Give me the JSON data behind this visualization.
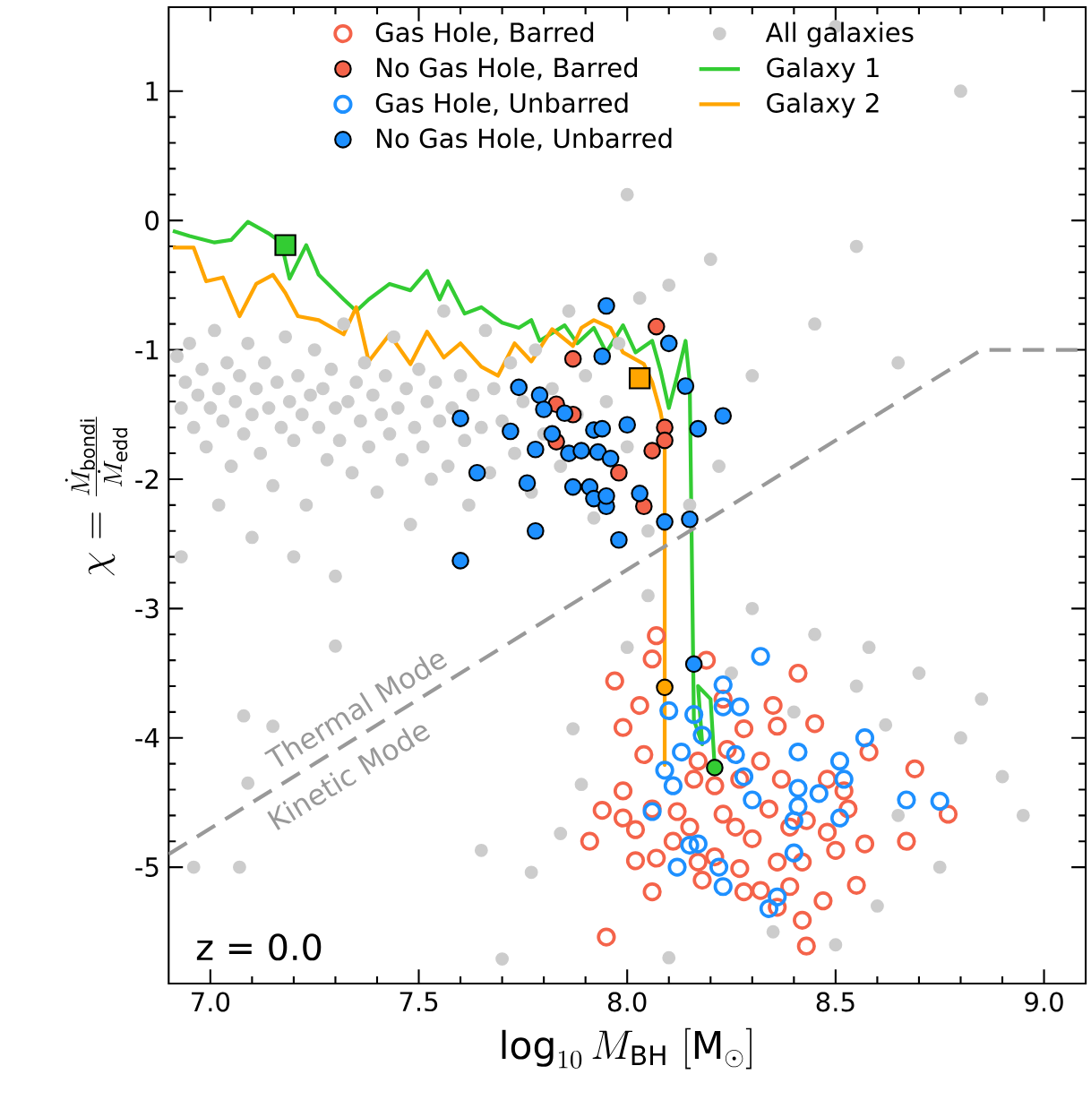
{
  "chart_data": {
    "type": "scatter",
    "xlabel": "\\log_{10} M_{\\rm BH}\\ [{\\rm M}_\\odot]",
    "ylabel": "\\chi = \\frac{\\dot{M}_{\\rm bondi}}{\\dot{M}_{\\rm edd}}",
    "xlim": [
      6.9,
      9.1
    ],
    "ylim": [
      -5.9,
      1.65
    ],
    "xticks": [
      {
        "value": 7.0,
        "label": "7.0"
      },
      {
        "value": 7.5,
        "label": "7.5"
      },
      {
        "value": 8.0,
        "label": "8.0"
      },
      {
        "value": 8.5,
        "label": "8.5"
      },
      {
        "value": 9.0,
        "label": "9.0"
      }
    ],
    "yticks": [
      -5,
      -4,
      -3,
      -2,
      -1,
      0,
      1
    ],
    "legend": "top",
    "grid": false,
    "marker": "circle",
    "annotations": [
      "Thermal Mode",
      "Kinetic Mode",
      "z = 0.0"
    ],
    "series": [
      {
        "name": "Gas Hole, Barred",
        "color": "#f4634a",
        "x": [
          8.07,
          8.06,
          7.97,
          8.03,
          7.99,
          8.04,
          7.99,
          7.94,
          7.91,
          8.02,
          8.07,
          8.02,
          8.06,
          8.12,
          8.11,
          8.17,
          8.19,
          8.23,
          8.28,
          8.35,
          8.36,
          8.41,
          8.45,
          8.32,
          8.37,
          8.27,
          8.21,
          8.23,
          8.26,
          8.3,
          8.34,
          8.39,
          8.43,
          8.48,
          8.52,
          8.58,
          8.57,
          8.55,
          8.47,
          8.42,
          8.43,
          8.36,
          8.32,
          8.27,
          8.21,
          8.67,
          8.69,
          8.77,
          7.95,
          8.16,
          8.17,
          8.15,
          8.24,
          8.48,
          8.42,
          8.36,
          8.18,
          8.06,
          7.99,
          8.53,
          8.5,
          8.39,
          8.28
        ],
        "values": [
          -3.21,
          -3.39,
          -3.56,
          -3.75,
          -3.92,
          -4.13,
          -4.41,
          -4.56,
          -4.8,
          -4.95,
          -4.93,
          -4.71,
          -4.55,
          -4.57,
          -4.8,
          -4.96,
          -3.4,
          -3.7,
          -3.93,
          -3.75,
          -3.91,
          -3.5,
          -3.89,
          -4.18,
          -4.32,
          -4.32,
          -4.37,
          -4.59,
          -4.69,
          -4.78,
          -4.55,
          -4.69,
          -4.64,
          -4.73,
          -4.41,
          -4.11,
          -4.82,
          -5.14,
          -5.26,
          -5.41,
          -5.61,
          -5.31,
          -5.18,
          -5.01,
          -4.92,
          -4.8,
          -4.24,
          -4.59,
          -5.54,
          -4.32,
          -4.18,
          -4.69,
          -4.09,
          -4.32,
          -4.96,
          -4.96,
          -5.1,
          -5.19,
          -4.62,
          -4.55,
          -4.87,
          -5.15,
          -5.19
        ]
      },
      {
        "name": "No Gas Hole, Barred",
        "color": "#f4634a",
        "x": [
          8.07,
          7.87,
          7.83,
          7.87,
          7.83,
          8.09,
          8.09,
          8.06,
          7.98,
          8.04
        ],
        "values": [
          -0.82,
          -1.07,
          -1.42,
          -1.5,
          -1.71,
          -1.6,
          -1.7,
          -1.78,
          -1.95,
          -2.21
        ]
      },
      {
        "name": "Gas Hole, Unbarred",
        "color": "#1e90ff",
        "x": [
          8.32,
          8.23,
          8.27,
          8.23,
          8.1,
          8.16,
          8.18,
          8.13,
          8.26,
          8.41,
          8.57,
          8.51,
          8.52,
          8.28,
          8.11,
          8.09,
          8.3,
          8.06,
          8.41,
          8.41,
          8.46,
          8.51,
          8.4,
          8.17,
          8.15,
          8.12,
          8.22,
          8.23,
          8.4,
          8.36,
          8.34,
          8.67,
          8.75
        ],
        "values": [
          -3.37,
          -3.59,
          -3.76,
          -3.76,
          -3.79,
          -3.82,
          -3.98,
          -4.11,
          -4.13,
          -4.11,
          -4.0,
          -4.18,
          -4.32,
          -4.3,
          -4.37,
          -4.25,
          -4.48,
          -4.57,
          -4.39,
          -4.53,
          -4.43,
          -4.62,
          -4.64,
          -4.82,
          -4.83,
          -5.0,
          -5.0,
          -5.15,
          -4.89,
          -5.23,
          -5.32,
          -4.48,
          -4.49
        ]
      },
      {
        "name": "No Gas Hole, Unbarred",
        "color": "#1e90ff",
        "x": [
          7.95,
          8.1,
          7.94,
          7.74,
          7.79,
          7.8,
          7.85,
          7.6,
          7.72,
          7.82,
          7.92,
          7.94,
          8.0,
          8.14,
          8.17,
          8.23,
          7.78,
          7.86,
          7.89,
          7.93,
          7.96,
          7.64,
          7.76,
          7.87,
          7.91,
          7.92,
          7.95,
          7.95,
          8.03,
          8.09,
          8.15,
          7.78,
          7.98,
          7.6,
          8.16
        ],
        "values": [
          -0.66,
          -0.95,
          -1.05,
          -1.29,
          -1.35,
          -1.46,
          -1.49,
          -1.53,
          -1.63,
          -1.65,
          -1.62,
          -1.61,
          -1.58,
          -1.28,
          -1.61,
          -1.51,
          -1.77,
          -1.8,
          -1.78,
          -1.79,
          -1.84,
          -1.95,
          -2.03,
          -2.06,
          -2.06,
          -2.15,
          -2.21,
          -2.13,
          -2.11,
          -2.33,
          -2.31,
          -2.4,
          -2.47,
          -2.63,
          -3.43
        ]
      },
      {
        "name": "All galaxies",
        "color": "#cccccc",
        "x": [
          6.92,
          6.93,
          6.94,
          6.95,
          6.96,
          6.97,
          6.98,
          6.99,
          7.0,
          7.01,
          7.02,
          7.03,
          7.04,
          7.05,
          7.06,
          7.07,
          7.08,
          7.09,
          7.1,
          7.11,
          7.12,
          7.13,
          7.14,
          7.15,
          7.16,
          7.17,
          7.18,
          7.19,
          7.2,
          7.21,
          7.22,
          7.23,
          7.24,
          7.25,
          7.26,
          7.27,
          7.28,
          7.29,
          7.3,
          7.31,
          7.32,
          7.33,
          7.34,
          7.35,
          7.36,
          7.37,
          7.38,
          7.39,
          7.4,
          7.41,
          7.42,
          7.43,
          7.44,
          7.45,
          7.46,
          7.47,
          7.48,
          7.49,
          7.5,
          7.51,
          7.52,
          7.53,
          7.54,
          7.55,
          7.56,
          7.57,
          7.58,
          7.6,
          7.61,
          7.62,
          7.63,
          7.65,
          7.66,
          7.67,
          7.68,
          7.7,
          7.72,
          7.73,
          7.75,
          7.77,
          7.78,
          7.8,
          7.82,
          7.84,
          7.86,
          7.88,
          7.9,
          7.92,
          7.95,
          7.98,
          8.0,
          8.03,
          8.05,
          8.1,
          8.15,
          8.22,
          8.3,
          8.45,
          8.2,
          8.0,
          8.5,
          8.8,
          8.55,
          8.65,
          6.93,
          7.02,
          7.1,
          7.2,
          7.3,
          6.96,
          7.07,
          7.08,
          7.15,
          7.09,
          7.3,
          7.65,
          7.77,
          7.7,
          7.84,
          7.87,
          7.89,
          8.3,
          8.45,
          8.55,
          8.62,
          8.7,
          8.8,
          8.9,
          8.95,
          8.75,
          8.6,
          8.5,
          8.35,
          8.1,
          8.25,
          8.4,
          8.65,
          8.85,
          8.58,
          8.0,
          8.05
        ],
        "values": [
          -1.05,
          -1.45,
          -1.25,
          -0.95,
          -1.6,
          -1.35,
          -1.15,
          -1.75,
          -1.45,
          -0.85,
          -1.3,
          -1.55,
          -1.1,
          -1.9,
          -1.4,
          -1.2,
          -1.65,
          -0.95,
          -1.5,
          -1.3,
          -1.8,
          -1.1,
          -1.45,
          -2.05,
          -1.25,
          -1.6,
          -0.9,
          -1.4,
          -1.7,
          -1.2,
          -1.5,
          -2.2,
          -1.35,
          -1.0,
          -1.6,
          -1.3,
          -1.85,
          -1.15,
          -1.45,
          -1.7,
          -0.8,
          -1.4,
          -1.95,
          -1.25,
          -1.55,
          -1.1,
          -1.75,
          -1.35,
          -2.1,
          -1.5,
          -1.2,
          -1.65,
          -0.9,
          -1.45,
          -1.85,
          -1.3,
          -2.35,
          -1.6,
          -1.15,
          -1.75,
          -1.4,
          -2.0,
          -1.25,
          -1.55,
          -0.7,
          -1.9,
          -1.45,
          -1.2,
          -1.7,
          -2.2,
          -1.35,
          -1.6,
          -0.85,
          -1.95,
          -1.3,
          -1.55,
          -1.1,
          -1.8,
          -1.4,
          -2.1,
          -1.0,
          -1.65,
          -1.3,
          -1.9,
          -0.7,
          -1.5,
          -1.2,
          -2.3,
          -1.4,
          -0.95,
          -1.75,
          -0.6,
          -2.4,
          -0.5,
          -2.2,
          -1.9,
          -1.2,
          -0.8,
          -0.3,
          0.2,
          1.5,
          1.0,
          -0.2,
          -1.1,
          -2.6,
          -2.2,
          -2.45,
          -2.6,
          -2.75,
          -5.0,
          -5.0,
          -3.83,
          -3.91,
          -4.35,
          -3.29,
          -4.87,
          -5.04,
          -5.71,
          -4.74,
          -3.93,
          -4.36,
          -3.0,
          -3.2,
          -3.6,
          -3.9,
          -3.5,
          -4.0,
          -4.3,
          -4.6,
          -5.0,
          -5.3,
          -5.6,
          -5.5,
          -5.7,
          -3.5,
          -3.8,
          -4.6,
          -3.7,
          -3.3,
          -3.3,
          -2.9
        ]
      },
      {
        "name": "Galaxy 1",
        "type": "line",
        "color": "#33cc33",
        "marker": "none",
        "x": [
          6.91,
          6.95,
          7.01,
          7.05,
          7.09,
          7.14,
          7.17,
          7.19,
          7.23,
          7.26,
          7.32,
          7.35,
          7.38,
          7.43,
          7.48,
          7.52,
          7.55,
          7.57,
          7.61,
          7.65,
          7.7,
          7.74,
          7.77,
          7.79,
          7.85,
          7.88,
          7.92,
          7.95,
          7.99,
          8.02,
          8.06,
          8.08,
          8.1,
          8.12,
          8.14,
          8.15,
          8.16,
          8.18,
          8.17,
          8.2,
          8.21
        ],
        "values": [
          -0.08,
          -0.12,
          -0.17,
          -0.15,
          -0.01,
          -0.1,
          -0.17,
          -0.45,
          -0.19,
          -0.42,
          -0.61,
          -0.7,
          -0.61,
          -0.49,
          -0.54,
          -0.39,
          -0.61,
          -0.47,
          -0.72,
          -0.67,
          -0.79,
          -0.83,
          -0.77,
          -0.93,
          -0.81,
          -0.95,
          -0.83,
          -1.02,
          -0.81,
          -1.02,
          -0.93,
          -1.16,
          -1.45,
          -1.2,
          -0.93,
          -1.25,
          -3.86,
          -4.05,
          -3.6,
          -3.7,
          -4.23
        ]
      },
      {
        "name": "Galaxy 2",
        "type": "line",
        "color": "#ffa500",
        "marker": "none",
        "x": [
          6.91,
          6.96,
          6.99,
          7.03,
          7.07,
          7.11,
          7.15,
          7.18,
          7.21,
          7.26,
          7.32,
          7.35,
          7.38,
          7.43,
          7.48,
          7.52,
          7.56,
          7.6,
          7.65,
          7.69,
          7.73,
          7.77,
          7.82,
          7.87,
          7.89,
          7.92,
          7.96,
          7.99,
          8.04,
          8.06,
          8.08,
          8.09,
          8.09,
          8.09
        ],
        "values": [
          -0.21,
          -0.21,
          -0.47,
          -0.44,
          -0.74,
          -0.49,
          -0.42,
          -0.56,
          -0.74,
          -0.77,
          -0.88,
          -0.67,
          -1.09,
          -0.88,
          -1.11,
          -0.86,
          -1.06,
          -0.95,
          -1.13,
          -1.2,
          -0.95,
          -1.09,
          -0.84,
          -0.97,
          -0.83,
          -0.77,
          -0.83,
          -1.02,
          -1.11,
          -1.25,
          -1.48,
          -1.66,
          -4.21,
          -3.61
        ]
      },
      {
        "type": "line",
        "color": "#999999",
        "marker": "none",
        "line_style": "dashed",
        "x": [
          6.9,
          8.85,
          9.1
        ],
        "values": [
          -4.9,
          -1.0,
          -1.0
        ]
      },
      {
        "color": "#33cc33",
        "marker": "square",
        "x": [
          7.18
        ],
        "values": [
          -0.19
        ]
      },
      {
        "color": "#ffa500",
        "marker": "square",
        "x": [
          8.03
        ],
        "values": [
          -1.22
        ]
      },
      {
        "color": "#ffa500",
        "x": [
          8.09
        ],
        "values": [
          -3.61
        ]
      },
      {
        "color": "#33cc33",
        "x": [
          8.21
        ],
        "values": [
          -4.23
        ]
      }
    ]
  }
}
